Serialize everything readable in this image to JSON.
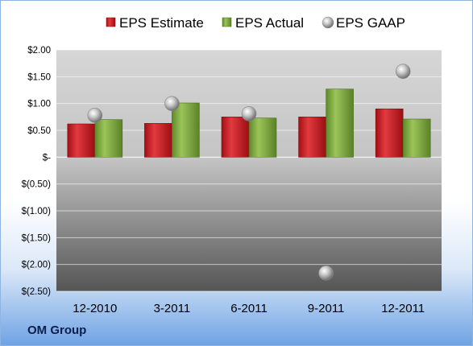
{
  "company": "OM Group",
  "chart_data": {
    "type": "bar",
    "categories": [
      "12-2010",
      "3-2011",
      "6-2011",
      "9-2011",
      "12-2011"
    ],
    "series": [
      {
        "name": "EPS Estimate",
        "kind": "bar",
        "color": "#c0161c",
        "values": [
          0.62,
          0.63,
          0.75,
          0.75,
          0.9
        ]
      },
      {
        "name": "EPS Actual",
        "kind": "bar",
        "color": "#7aa33a",
        "values": [
          0.7,
          1.01,
          0.73,
          1.27,
          0.71
        ]
      },
      {
        "name": "EPS GAAP",
        "kind": "marker",
        "color": "#a6a6a6",
        "values": [
          0.78,
          1.0,
          0.81,
          -2.16,
          1.6
        ]
      }
    ],
    "ylim": [
      -2.5,
      2.0
    ],
    "y_ticks": [
      {
        "value": 2.0,
        "label": "$2.00"
      },
      {
        "value": 1.5,
        "label": "$1.50"
      },
      {
        "value": 1.0,
        "label": "$1.00"
      },
      {
        "value": 0.5,
        "label": "$0.50"
      },
      {
        "value": 0.0,
        "label": "$-"
      },
      {
        "value": -0.5,
        "label": "$(0.50)"
      },
      {
        "value": -1.0,
        "label": "$(1.00)"
      },
      {
        "value": -1.5,
        "label": "$(1.50)"
      },
      {
        "value": -2.0,
        "label": "$(2.00)"
      },
      {
        "value": -2.5,
        "label": "$(2.50)"
      }
    ],
    "grid": true,
    "legend": "top"
  }
}
